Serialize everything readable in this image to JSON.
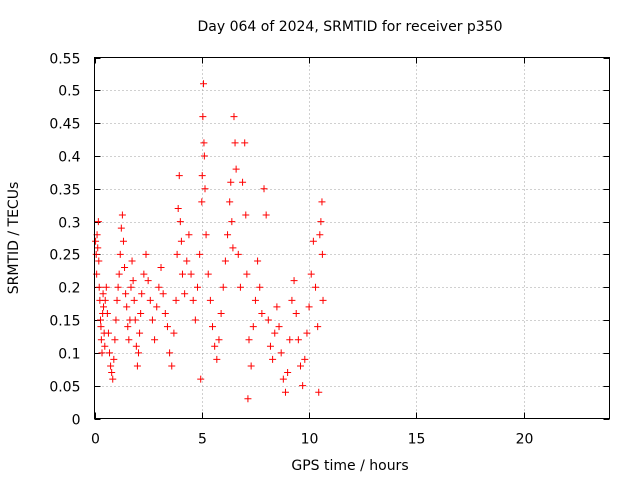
{
  "chart_data": {
    "type": "scatter",
    "title": "Day 064 of 2024, SRMTID for receiver p350",
    "xlabel": "GPS time / hours",
    "ylabel": "SRMTID / TECUs",
    "xlim": [
      0,
      24
    ],
    "ylim": [
      0,
      0.55
    ],
    "xticks": [
      0,
      5,
      10,
      15,
      20
    ],
    "yticks": [
      0,
      0.05,
      0.1,
      0.15,
      0.2,
      0.25,
      0.3,
      0.35,
      0.4,
      0.45,
      0.5,
      0.55
    ],
    "grid": true,
    "marker": "+",
    "marker_color": "#ff0000",
    "series": [
      {
        "name": "SRMTID",
        "points": [
          [
            0.05,
            0.27
          ],
          [
            0.08,
            0.25
          ],
          [
            0.1,
            0.22
          ],
          [
            0.12,
            0.28
          ],
          [
            0.15,
            0.26
          ],
          [
            0.18,
            0.3
          ],
          [
            0.2,
            0.24
          ],
          [
            0.22,
            0.2
          ],
          [
            0.25,
            0.18
          ],
          [
            0.28,
            0.15
          ],
          [
            0.3,
            0.14
          ],
          [
            0.32,
            0.12
          ],
          [
            0.35,
            0.1
          ],
          [
            0.38,
            0.16
          ],
          [
            0.4,
            0.19
          ],
          [
            0.42,
            0.17
          ],
          [
            0.45,
            0.13
          ],
          [
            0.48,
            0.11
          ],
          [
            0.5,
            0.18
          ],
          [
            0.55,
            0.2
          ],
          [
            0.6,
            0.16
          ],
          [
            0.65,
            0.13
          ],
          [
            0.7,
            0.1
          ],
          [
            0.75,
            0.08
          ],
          [
            0.8,
            0.07
          ],
          [
            0.85,
            0.06
          ],
          [
            0.9,
            0.09
          ],
          [
            0.95,
            0.12
          ],
          [
            1.0,
            0.15
          ],
          [
            1.05,
            0.18
          ],
          [
            1.1,
            0.2
          ],
          [
            1.15,
            0.22
          ],
          [
            1.2,
            0.25
          ],
          [
            1.25,
            0.29
          ],
          [
            1.3,
            0.31
          ],
          [
            1.35,
            0.27
          ],
          [
            1.4,
            0.23
          ],
          [
            1.45,
            0.19
          ],
          [
            1.5,
            0.17
          ],
          [
            1.55,
            0.14
          ],
          [
            1.6,
            0.12
          ],
          [
            1.65,
            0.15
          ],
          [
            1.7,
            0.2
          ],
          [
            1.75,
            0.24
          ],
          [
            1.8,
            0.21
          ],
          [
            1.85,
            0.18
          ],
          [
            1.9,
            0.15
          ],
          [
            1.95,
            0.11
          ],
          [
            2.0,
            0.08
          ],
          [
            2.05,
            0.1
          ],
          [
            2.1,
            0.13
          ],
          [
            2.15,
            0.16
          ],
          [
            2.2,
            0.19
          ],
          [
            2.3,
            0.22
          ],
          [
            2.4,
            0.25
          ],
          [
            2.5,
            0.21
          ],
          [
            2.6,
            0.18
          ],
          [
            2.7,
            0.15
          ],
          [
            2.8,
            0.12
          ],
          [
            2.9,
            0.17
          ],
          [
            3.0,
            0.2
          ],
          [
            3.1,
            0.23
          ],
          [
            3.2,
            0.19
          ],
          [
            3.3,
            0.16
          ],
          [
            3.4,
            0.14
          ],
          [
            3.5,
            0.1
          ],
          [
            3.6,
            0.08
          ],
          [
            3.7,
            0.13
          ],
          [
            3.8,
            0.18
          ],
          [
            3.85,
            0.25
          ],
          [
            3.9,
            0.32
          ],
          [
            3.95,
            0.37
          ],
          [
            4.0,
            0.3
          ],
          [
            4.05,
            0.27
          ],
          [
            4.1,
            0.22
          ],
          [
            4.2,
            0.19
          ],
          [
            4.3,
            0.24
          ],
          [
            4.4,
            0.28
          ],
          [
            4.5,
            0.22
          ],
          [
            4.6,
            0.18
          ],
          [
            4.7,
            0.15
          ],
          [
            4.8,
            0.2
          ],
          [
            4.9,
            0.25
          ],
          [
            4.95,
            0.06
          ],
          [
            5.0,
            0.33
          ],
          [
            5.02,
            0.37
          ],
          [
            5.05,
            0.46
          ],
          [
            5.08,
            0.51
          ],
          [
            5.1,
            0.42
          ],
          [
            5.12,
            0.4
          ],
          [
            5.15,
            0.35
          ],
          [
            5.2,
            0.28
          ],
          [
            5.3,
            0.22
          ],
          [
            5.4,
            0.18
          ],
          [
            5.5,
            0.14
          ],
          [
            5.6,
            0.11
          ],
          [
            5.7,
            0.09
          ],
          [
            5.8,
            0.12
          ],
          [
            5.9,
            0.16
          ],
          [
            6.0,
            0.2
          ],
          [
            6.1,
            0.24
          ],
          [
            6.2,
            0.28
          ],
          [
            6.3,
            0.33
          ],
          [
            6.35,
            0.36
          ],
          [
            6.4,
            0.3
          ],
          [
            6.45,
            0.26
          ],
          [
            6.5,
            0.46
          ],
          [
            6.55,
            0.42
          ],
          [
            6.6,
            0.38
          ],
          [
            6.7,
            0.25
          ],
          [
            6.8,
            0.2
          ],
          [
            6.9,
            0.36
          ],
          [
            7.0,
            0.42
          ],
          [
            7.05,
            0.31
          ],
          [
            7.1,
            0.22
          ],
          [
            7.15,
            0.03
          ],
          [
            7.2,
            0.12
          ],
          [
            7.3,
            0.08
          ],
          [
            7.4,
            0.14
          ],
          [
            7.5,
            0.18
          ],
          [
            7.6,
            0.24
          ],
          [
            7.7,
            0.2
          ],
          [
            7.8,
            0.16
          ],
          [
            7.9,
            0.35
          ],
          [
            8.0,
            0.31
          ],
          [
            8.1,
            0.15
          ],
          [
            8.2,
            0.11
          ],
          [
            8.3,
            0.09
          ],
          [
            8.4,
            0.13
          ],
          [
            8.5,
            0.17
          ],
          [
            8.6,
            0.14
          ],
          [
            8.7,
            0.1
          ],
          [
            8.8,
            0.06
          ],
          [
            8.9,
            0.04
          ],
          [
            9.0,
            0.07
          ],
          [
            9.1,
            0.12
          ],
          [
            9.2,
            0.18
          ],
          [
            9.3,
            0.21
          ],
          [
            9.4,
            0.16
          ],
          [
            9.5,
            0.12
          ],
          [
            9.6,
            0.08
          ],
          [
            9.7,
            0.05
          ],
          [
            9.8,
            0.09
          ],
          [
            9.9,
            0.13
          ],
          [
            10.0,
            0.17
          ],
          [
            10.1,
            0.22
          ],
          [
            10.2,
            0.27
          ],
          [
            10.3,
            0.2
          ],
          [
            10.4,
            0.14
          ],
          [
            10.45,
            0.04
          ],
          [
            10.5,
            0.28
          ],
          [
            10.55,
            0.3
          ],
          [
            10.6,
            0.33
          ],
          [
            10.62,
            0.25
          ],
          [
            10.65,
            0.18
          ]
        ]
      }
    ]
  }
}
